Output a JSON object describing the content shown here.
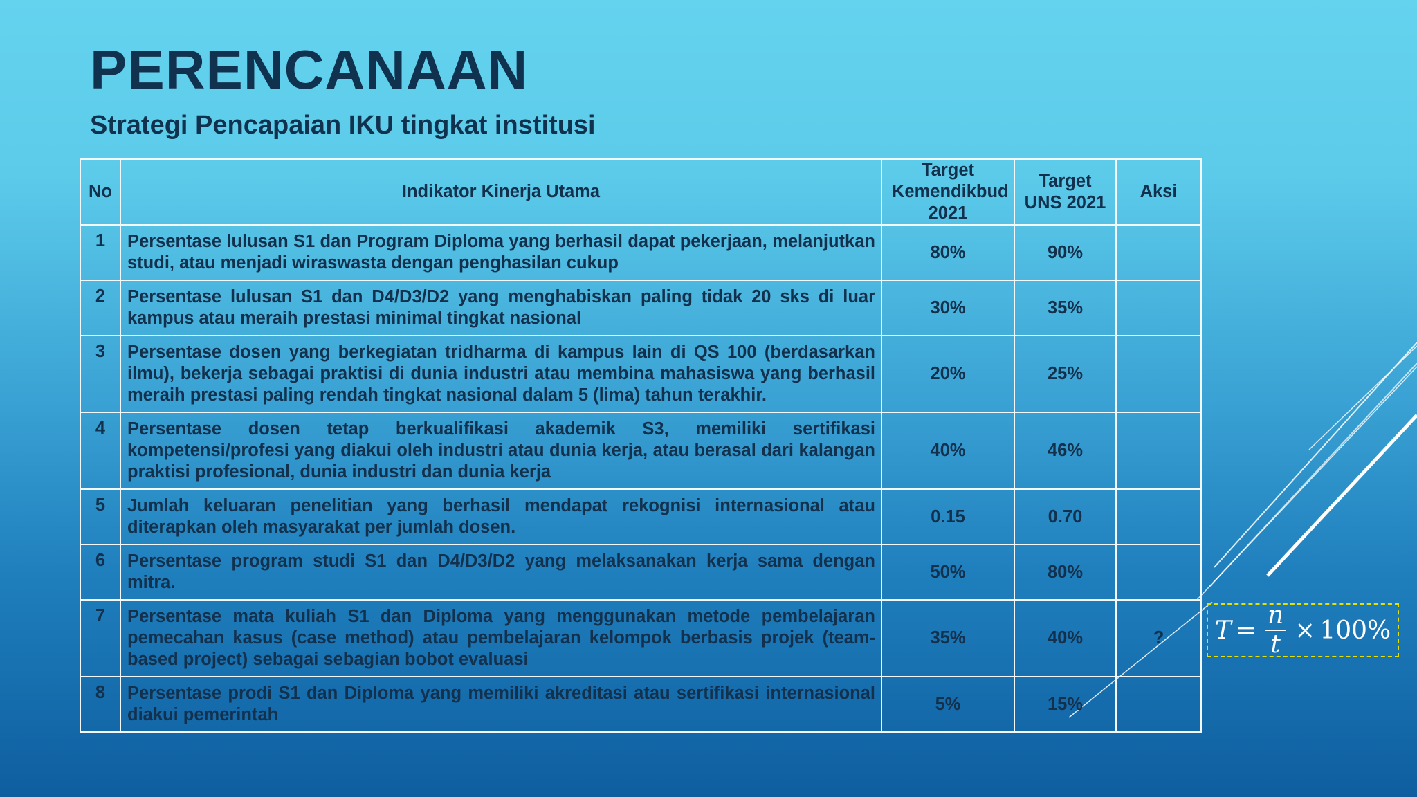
{
  "slide": {
    "title": "PERENCANAAN",
    "subtitle": "Strategi Pencapaian IKU tingkat institusi"
  },
  "table": {
    "headers": {
      "no": "No",
      "indicator": "Indikator Kinerja Utama",
      "target_kemendikbud": "Target Kemendikbud 2021",
      "target_uns": "Target UNS 2021",
      "aksi": "Aksi"
    },
    "rows": [
      {
        "no": "1",
        "indicator": "Persentase lulusan S1 dan Program Diploma yang berhasil dapat pekerjaan, melanjutkan studi, atau menjadi wiraswasta dengan penghasilan cukup",
        "target_kemendikbud": "80%",
        "target_uns": "90%",
        "aksi": ""
      },
      {
        "no": "2",
        "indicator": "Persentase lulusan S1 dan D4/D3/D2 yang menghabiskan paling tidak 20 sks di luar kampus atau meraih prestasi minimal tingkat nasional",
        "target_kemendikbud": "30%",
        "target_uns": "35%",
        "aksi": ""
      },
      {
        "no": "3",
        "indicator": "Persentase dosen yang berkegiatan tridharma di kampus lain di QS 100 (berdasarkan ilmu), bekerja sebagai praktisi di dunia industri atau membina mahasiswa yang berhasil meraih prestasi paling rendah tingkat nasional dalam 5 (lima) tahun terakhir.",
        "target_kemendikbud": "20%",
        "target_uns": "25%",
        "aksi": ""
      },
      {
        "no": "4",
        "indicator": "Persentase dosen tetap berkualifikasi akademik S3, memiliki sertifikasi kompetensi/profesi yang diakui oleh industri atau dunia kerja, atau berasal dari kalangan praktisi profesional, dunia industri dan dunia kerja",
        "target_kemendikbud": "40%",
        "target_uns": "46%",
        "aksi": ""
      },
      {
        "no": "5",
        "indicator": "Jumlah keluaran penelitian yang berhasil mendapat rekognisi internasional atau diterapkan oleh masyarakat per jumlah dosen.",
        "target_kemendikbud": "0.15",
        "target_uns": "0.70",
        "aksi": ""
      },
      {
        "no": "6",
        "indicator": "Persentase program studi S1 dan D4/D3/D2 yang melaksanakan kerja sama dengan mitra.",
        "target_kemendikbud": "50%",
        "target_uns": "80%",
        "aksi": ""
      },
      {
        "no": "7",
        "indicator": "Persentase mata kuliah S1 dan Diploma yang menggunakan metode pembelajaran pemecahan kasus (case method) atau pembelajaran kelompok berbasis projek (team-based project) sebagai sebagian bobot evaluasi",
        "target_kemendikbud": "35%",
        "target_uns": "40%",
        "aksi": "?"
      },
      {
        "no": "8",
        "indicator": "Persentase prodi S1 dan Diploma yang memiliki akreditasi atau sertifikasi internasional diakui pemerintah",
        "target_kemendikbud": "5%",
        "target_uns": "15%",
        "aksi": ""
      }
    ]
  },
  "formula": {
    "lhs": "T",
    "equals": "=",
    "numerator": "n",
    "denominator": "t",
    "times": "×",
    "percent": "100%"
  }
}
